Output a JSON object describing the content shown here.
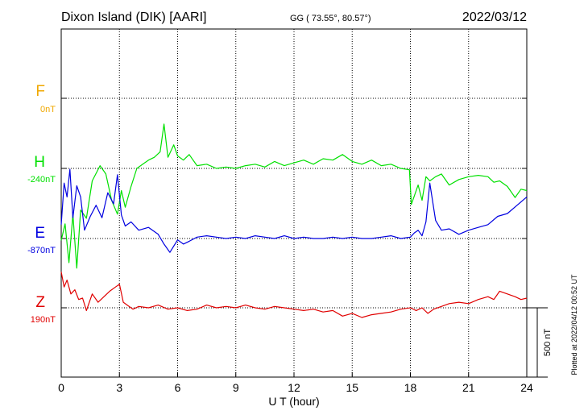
{
  "header": {
    "station": "Dixon Island (DIK)  [AARI]",
    "coords": "GG ( 73.55°,  80.57°)",
    "date": "2022/03/12"
  },
  "footer": {
    "xlabel": "U T (hour)",
    "plotted": "Plotted at 2022/04/12 00:52 UT",
    "scale_label": "500 nT"
  },
  "chart_data": {
    "type": "line",
    "title": "Dixon Island (DIK)  [AARI]",
    "xlabel": "U T (hour)",
    "ylabel": "",
    "xlim": [
      0,
      24
    ],
    "x_ticks": [
      0,
      3,
      6,
      9,
      12,
      15,
      18,
      21,
      24
    ],
    "grid": true,
    "scale_bar_nT": 500,
    "series": [
      {
        "name": "F",
        "baseline_label": "0nT",
        "color": "#f0a800",
        "x": [],
        "y": []
      },
      {
        "name": "H",
        "baseline_label": "-240nT",
        "color": "#00e000",
        "x": [
          0,
          0.2,
          0.4,
          0.6,
          0.8,
          1.0,
          1.3,
          1.6,
          2.0,
          2.3,
          2.6,
          2.9,
          3.1,
          3.3,
          3.6,
          3.9,
          4.2,
          4.5,
          4.8,
          5.1,
          5.3,
          5.5,
          5.8,
          6.0,
          6.3,
          6.6,
          7.0,
          7.5,
          8.0,
          8.5,
          9.0,
          9.5,
          10.0,
          10.5,
          11.0,
          11.5,
          12.0,
          12.5,
          13.0,
          13.5,
          14.0,
          14.5,
          15.0,
          15.5,
          16.0,
          16.5,
          17.0,
          17.5,
          17.95,
          18.05,
          18.2,
          18.4,
          18.6,
          18.8,
          19.0,
          19.3,
          19.6,
          20.0,
          20.5,
          21.0,
          21.5,
          22.0,
          22.3,
          22.6,
          23.0,
          23.4,
          23.7,
          24.0
        ],
        "y": [
          -520,
          -400,
          -680,
          -330,
          -720,
          -300,
          -360,
          -90,
          20,
          -40,
          -230,
          -330,
          -160,
          -280,
          -130,
          0,
          30,
          60,
          80,
          120,
          320,
          80,
          170,
          90,
          60,
          100,
          20,
          30,
          0,
          10,
          0,
          20,
          30,
          10,
          50,
          20,
          40,
          60,
          30,
          70,
          60,
          100,
          50,
          30,
          60,
          20,
          30,
          0,
          -10,
          -260,
          -200,
          -120,
          -230,
          -60,
          -90,
          -60,
          -40,
          -120,
          -80,
          -60,
          -50,
          -60,
          -100,
          -90,
          -130,
          -210,
          -150,
          -160
        ]
      },
      {
        "name": "E",
        "baseline_label": "-870nT",
        "color": "#0000e0",
        "x": [
          0,
          0.15,
          0.3,
          0.45,
          0.6,
          0.8,
          1.0,
          1.2,
          1.5,
          1.8,
          2.1,
          2.4,
          2.7,
          2.9,
          3.1,
          3.3,
          3.6,
          4.0,
          4.5,
          5.0,
          5.3,
          5.6,
          6.0,
          6.3,
          6.6,
          7.0,
          7.5,
          8.0,
          8.5,
          9.0,
          9.5,
          10.0,
          10.5,
          11.0,
          11.5,
          12.0,
          12.5,
          13.0,
          13.5,
          14.0,
          14.5,
          15.0,
          15.5,
          16.0,
          16.5,
          17.0,
          17.5,
          18.0,
          18.2,
          18.4,
          18.6,
          18.8,
          19.0,
          19.3,
          19.6,
          20.0,
          20.5,
          21.0,
          21.5,
          22.0,
          22.5,
          23.0,
          23.5,
          24.0
        ],
        "y": [
          100,
          400,
          300,
          500,
          150,
          380,
          300,
          60,
          160,
          240,
          150,
          330,
          250,
          460,
          170,
          90,
          120,
          60,
          80,
          30,
          -40,
          -100,
          -10,
          -40,
          -20,
          10,
          20,
          10,
          0,
          10,
          0,
          20,
          10,
          0,
          20,
          0,
          10,
          0,
          0,
          10,
          0,
          10,
          0,
          0,
          10,
          20,
          0,
          10,
          40,
          60,
          20,
          120,
          400,
          130,
          60,
          70,
          30,
          60,
          80,
          100,
          160,
          180,
          240,
          300
        ]
      },
      {
        "name": "Z",
        "baseline_label": "190nT",
        "color": "#e00000",
        "x": [
          0,
          0.15,
          0.3,
          0.5,
          0.7,
          0.9,
          1.1,
          1.3,
          1.6,
          1.9,
          2.2,
          2.5,
          2.8,
          3.0,
          3.2,
          3.4,
          3.7,
          4.0,
          4.5,
          5.0,
          5.5,
          6.0,
          6.5,
          7.0,
          7.5,
          8.0,
          8.5,
          9.0,
          9.5,
          10.0,
          10.5,
          11.0,
          11.5,
          12.0,
          12.5,
          13.0,
          13.5,
          14.0,
          14.5,
          15.0,
          15.5,
          16.0,
          16.5,
          17.0,
          17.5,
          18.0,
          18.3,
          18.6,
          18.9,
          19.2,
          19.6,
          20.0,
          20.5,
          21.0,
          21.5,
          22.0,
          22.3,
          22.6,
          23.0,
          23.4,
          23.7,
          24.0
        ],
        "y": [
          260,
          150,
          200,
          100,
          130,
          60,
          70,
          -20,
          100,
          40,
          80,
          120,
          150,
          170,
          40,
          20,
          -10,
          10,
          0,
          20,
          -10,
          0,
          -20,
          -10,
          20,
          0,
          10,
          0,
          20,
          0,
          -10,
          10,
          0,
          -10,
          -20,
          -10,
          -30,
          -20,
          -60,
          -40,
          -70,
          -50,
          -40,
          -30,
          -10,
          0,
          -20,
          0,
          -40,
          -10,
          10,
          30,
          40,
          30,
          60,
          80,
          60,
          120,
          100,
          80,
          60,
          70
        ]
      }
    ]
  }
}
